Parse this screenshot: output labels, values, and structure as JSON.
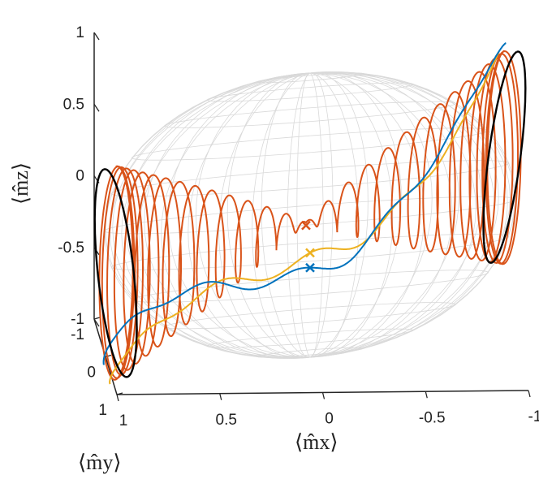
{
  "chart_data": {
    "type": "scatter",
    "projection": "3d",
    "axes": {
      "x": {
        "label": "⟨m̂x⟩",
        "range": [
          -1,
          1
        ],
        "ticks": [
          1,
          0.5,
          0,
          -0.5,
          -1
        ],
        "tick_labels": [
          "1",
          "0.5",
          "0",
          "-0.5",
          "-1"
        ]
      },
      "y": {
        "label": "⟨m̂y⟩",
        "range": [
          -1,
          1
        ],
        "ticks": [
          -1,
          0,
          1
        ],
        "tick_labels": [
          "-1",
          "0",
          "1"
        ]
      },
      "z": {
        "label": "⟨m̂z⟩",
        "range": [
          -1,
          1
        ],
        "ticks": [
          1,
          0.5,
          0,
          -0.5,
          -1
        ],
        "tick_labels": [
          "1",
          "0.5",
          "0",
          "-0.5",
          "-1"
        ]
      }
    },
    "grid": false,
    "sphere": {
      "radius": 1,
      "wireframe": true
    },
    "series": [
      {
        "color": "#d95319",
        "trajectory": "spiral",
        "from": [
          0.95,
          0,
          -0.31
        ],
        "to": [
          -0.95,
          0,
          0.31
        ],
        "loops": 30,
        "end_marker": "x"
      },
      {
        "color": "#edb120",
        "trajectory": "wander",
        "from": [
          0.95,
          0,
          -0.31
        ],
        "to": [
          -0.95,
          0,
          0.31
        ],
        "end_marker": "x"
      },
      {
        "color": "#0072bd",
        "trajectory": "wander",
        "from": [
          0.95,
          0,
          -0.31
        ],
        "to": [
          -0.95,
          0,
          0.31
        ],
        "end_marker": "x"
      },
      {
        "color": "#000000",
        "trajectory": "boundary circles",
        "circles": [
          [
            0.95,
            0,
            -0.31
          ],
          [
            -0.95,
            0,
            0.31
          ]
        ]
      }
    ],
    "colors": {
      "orange": "#d95319",
      "yellow": "#edb120",
      "blue": "#0072bd",
      "black": "#000000",
      "wire": "#d9d9d9"
    }
  }
}
